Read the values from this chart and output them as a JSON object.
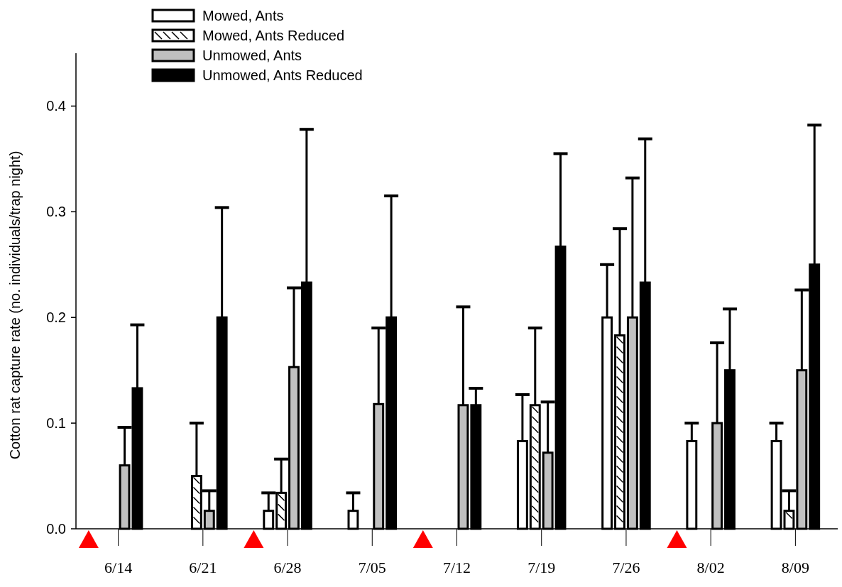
{
  "chart_data": {
    "type": "bar",
    "ylabel": "Cotton rat capture rate (no. individuals/trap night)",
    "categories": [
      "6/14",
      "6/21",
      "6/28",
      "7/05",
      "7/12",
      "7/19",
      "7/26",
      "8/02",
      "8/09"
    ],
    "series": [
      {
        "name": "Mowed, Ants",
        "color": "#ffffff",
        "values": [
          0,
          0,
          0.017,
          0.017,
          0,
          0.083,
          0.2,
          0.083,
          0.083
        ],
        "errors": [
          null,
          null,
          [
            0.017,
            0.034
          ],
          [
            0.017,
            0.034
          ],
          null,
          [
            0.083,
            0.127
          ],
          [
            0.2,
            0.25
          ],
          [
            0.083,
            0.1
          ],
          [
            0.083,
            0.1
          ]
        ]
      },
      {
        "name": "Mowed, Ants Reduced",
        "color": "#ffffff",
        "values": [
          0,
          0.05,
          0.034,
          0,
          0,
          0.117,
          0.183,
          0,
          0.017
        ],
        "errors": [
          null,
          [
            0.05,
            0.1
          ],
          [
            0.034,
            0.066
          ],
          null,
          null,
          [
            0.117,
            0.19
          ],
          [
            0.183,
            0.284
          ],
          null,
          [
            0.017,
            0.036
          ]
        ]
      },
      {
        "name": "Unmowed, Ants",
        "color": "#c0c0c0",
        "values": [
          0.06,
          0.017,
          0.153,
          0.118,
          0.117,
          0.072,
          0.2,
          0.1,
          0.15
        ],
        "errors": [
          [
            0.06,
            0.096
          ],
          [
            0.017,
            0.036
          ],
          [
            0.153,
            0.228
          ],
          [
            0.118,
            0.19
          ],
          [
            0.117,
            0.21
          ],
          [
            0.072,
            0.12
          ],
          [
            0.2,
            0.332
          ],
          [
            0.1,
            0.176
          ],
          [
            0.15,
            0.226
          ]
        ]
      },
      {
        "name": "Unmowed, Ants Reduced",
        "color": "#000000",
        "values": [
          0.133,
          0.2,
          0.233,
          0.2,
          0.117,
          0.267,
          0.233,
          0.15,
          0.25
        ],
        "errors": [
          [
            0.133,
            0.193
          ],
          [
            0.2,
            0.304
          ],
          [
            0.233,
            0.378
          ],
          [
            0.2,
            0.315
          ],
          [
            0.117,
            0.133
          ],
          [
            0.267,
            0.355
          ],
          [
            0.233,
            0.369
          ],
          [
            0.15,
            0.208
          ],
          [
            0.25,
            0.382
          ]
        ]
      }
    ],
    "ylim": [
      0,
      0.45
    ],
    "yticks": [
      {
        "value": 0,
        "label": "0.0"
      },
      {
        "value": 0.1,
        "label": "0.1"
      },
      {
        "value": 0.2,
        "label": "0.2"
      },
      {
        "value": 0.3,
        "label": "0.3"
      },
      {
        "value": 0.4,
        "label": "0.4"
      }
    ],
    "legend": "top left",
    "grid": false
  }
}
